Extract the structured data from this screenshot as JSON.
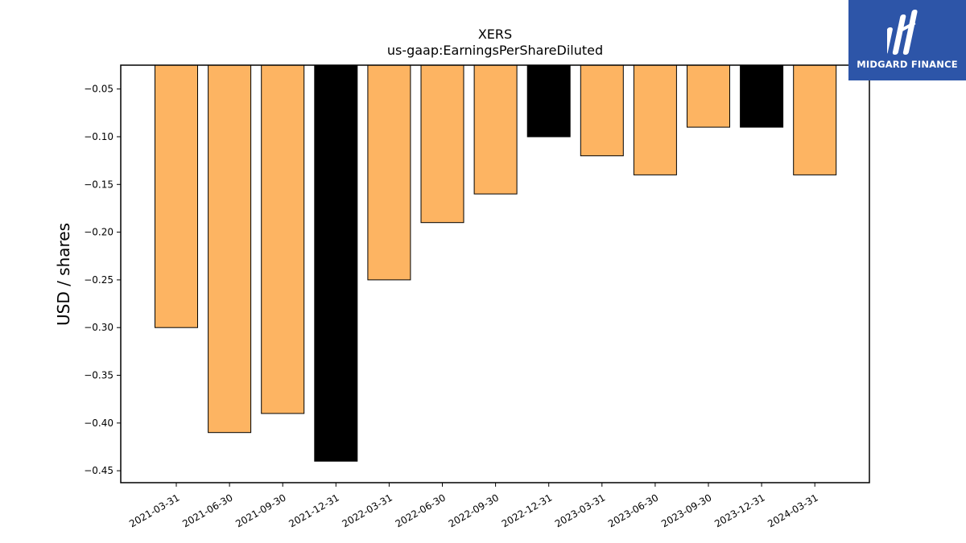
{
  "brand": {
    "name": "MIDGARD FINANCE",
    "logo_icon": "midgard-logo-icon",
    "background": "#2d55a8"
  },
  "chart_data": {
    "type": "bar",
    "title": "XERS",
    "subtitle": "us-gaap:EarningsPerShareDiluted",
    "xlabel": "",
    "ylabel": "USD / shares",
    "categories": [
      "2021-03-31",
      "2021-06-30",
      "2021-09-30",
      "2021-12-31",
      "2022-03-31",
      "2022-06-30",
      "2022-09-30",
      "2022-12-31",
      "2023-03-31",
      "2023-06-30",
      "2023-09-30",
      "2023-12-31",
      "2024-03-31"
    ],
    "values": [
      -0.3,
      -0.41,
      -0.39,
      -0.44,
      -0.25,
      -0.19,
      -0.16,
      -0.1,
      -0.12,
      -0.14,
      -0.09,
      -0.09,
      -0.14
    ],
    "bar_colors": [
      "#fdb462",
      "#fdb462",
      "#fdb462",
      "#000000",
      "#fdb462",
      "#fdb462",
      "#fdb462",
      "#000000",
      "#fdb462",
      "#fdb462",
      "#fdb462",
      "#000000",
      "#fdb462"
    ],
    "ylim": [
      -0.4625,
      -0.025
    ],
    "yticks": [
      -0.05,
      -0.1,
      -0.15,
      -0.2,
      -0.25,
      -0.3,
      -0.35,
      -0.4,
      -0.45
    ],
    "ytick_labels": [
      "−0.05",
      "−0.10",
      "−0.15",
      "−0.20",
      "−0.25",
      "−0.30",
      "−0.35",
      "−0.40",
      "−0.45"
    ],
    "grid": false,
    "legend": "none"
  }
}
